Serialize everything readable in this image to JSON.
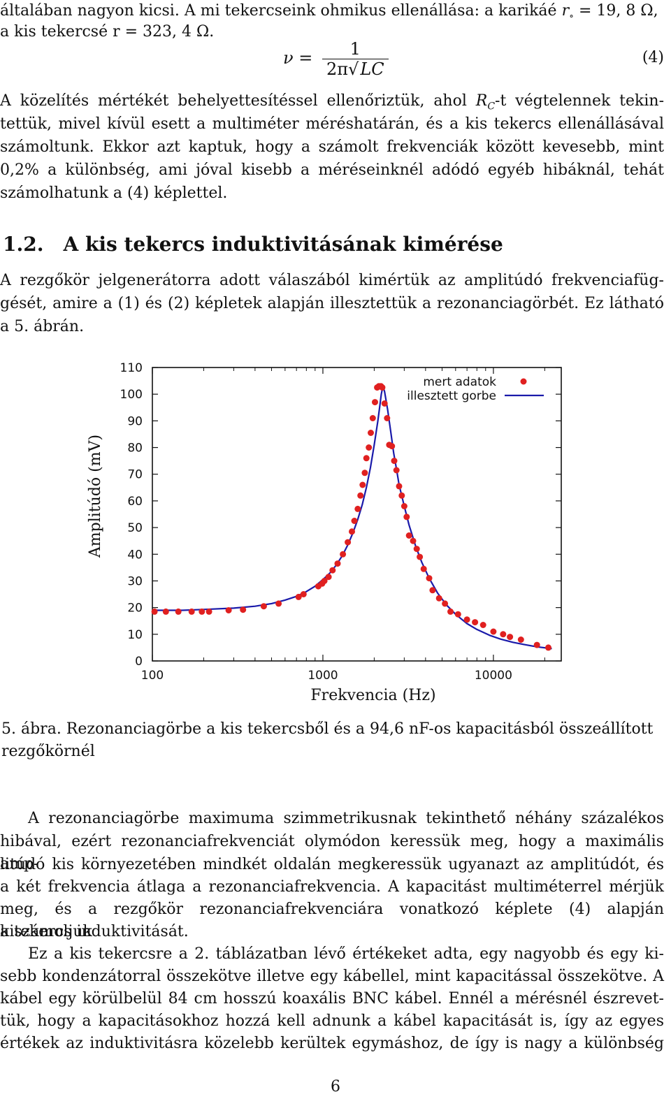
{
  "intro": {
    "line1_pre": "általában nagyon kicsi. A mi tekercseink ohmikus ellenállása: a karikáé ",
    "line1_sym": "r",
    "line1_sub": "∘",
    "line1_post": " = 19, 8 Ω,",
    "line2": "a kis tekercsé r = 323, 4 Ω."
  },
  "equation": {
    "lhs": "ν =",
    "numerator": "1",
    "den_pre": "2π",
    "den_root": "LC",
    "number": "(4)"
  },
  "paragraph1": {
    "line1_pre": "A közelítés mértékét behelyettesítéssel ellenőriztük, ahol ",
    "line1_sym": "R",
    "line1_sub": "C",
    "line1_post": "-t végtelennek tekin-",
    "line2": "tettük, mivel kívül esett a multiméter méréshatárán, és a kis tekercs ellenállásával",
    "line3": "számoltunk. Ekkor azt kaptuk, hogy a számolt frekvenciák között kevesebb, mint",
    "line4": "0,2% a különbség, ami jóval kisebb a méréseinknél adódó egyéb hibáknál, tehát",
    "line5": "számolhatunk a (4) képlettel."
  },
  "section": {
    "number": "1.2.",
    "title": "A kis tekercs induktivitásának kimérése"
  },
  "paragraph2": {
    "line1": "A rezgőkör jelgenerátorra adott válaszából kimértük az amplitúdó frekvenciafüg-",
    "line2": "gését, amire a (1) és (2) képletek alapján illesztettük a rezonanciagörbét. Ez látható",
    "line3": "a 5. ábrán."
  },
  "chart_data": {
    "type": "scatter",
    "xlabel": "Frekvencia (Hz)",
    "ylabel": "Amplitúdó (mV)",
    "x_scale": "log",
    "xlim": [
      100,
      25000
    ],
    "ylim": [
      0,
      110
    ],
    "x_ticks": [
      100,
      1000,
      10000
    ],
    "x_tick_labels": [
      "100",
      "1000",
      "10000"
    ],
    "y_ticks": [
      0,
      10,
      20,
      30,
      40,
      50,
      60,
      70,
      80,
      90,
      100,
      110
    ],
    "y_tick_labels": [
      "0",
      "10",
      "20",
      "30",
      "40",
      "50",
      "60",
      "70",
      "80",
      "90",
      "100",
      "110"
    ],
    "legend_position": "top-right",
    "series": [
      {
        "name": "mert adatok",
        "kind": "points",
        "color": "#e02020",
        "x": [
          103,
          120,
          142,
          170,
          195,
          215,
          280,
          340,
          450,
          550,
          720,
          770,
          940,
          990,
          1020,
          1080,
          1140,
          1220,
          1310,
          1400,
          1480,
          1530,
          1600,
          1660,
          1710,
          1760,
          1800,
          1860,
          1910,
          1960,
          2020,
          2080,
          2130,
          2190,
          2230,
          2300,
          2380,
          2450,
          2540,
          2620,
          2700,
          2800,
          2900,
          3000,
          3100,
          3200,
          3380,
          3550,
          3700,
          3900,
          4200,
          4400,
          4800,
          5200,
          5600,
          6200,
          7000,
          7800,
          8700,
          10000,
          11400,
          12500,
          14500,
          18000,
          21000
        ],
        "y": [
          18.5,
          18.5,
          18.5,
          18.5,
          18.5,
          18.5,
          19,
          19.2,
          20.5,
          21.5,
          24,
          25,
          28,
          29,
          30,
          31.5,
          34,
          36.5,
          40,
          44.5,
          48.5,
          52.5,
          57,
          62,
          66,
          70.5,
          76,
          80,
          85.5,
          91,
          97,
          102.5,
          103,
          103,
          102.5,
          96.5,
          91,
          81,
          80.5,
          75,
          71.5,
          65.5,
          62,
          58,
          54,
          47,
          45,
          42,
          39,
          34.5,
          31,
          26.5,
          23.5,
          21.5,
          18.5,
          17.5,
          15.5,
          14.5,
          13.5,
          11,
          10,
          9,
          8,
          6,
          5
        ]
      },
      {
        "name": "illesztett gorbe",
        "kind": "line",
        "color": "#1a1aaa",
        "x": [
          100,
          150,
          200,
          300,
          400,
          500,
          600,
          700,
          800,
          900,
          1000,
          1100,
          1200,
          1300,
          1400,
          1500,
          1600,
          1700,
          1800,
          1900,
          2000,
          2100,
          2150,
          2200,
          2250,
          2300,
          2400,
          2500,
          2600,
          2700,
          2800,
          3000,
          3200,
          3500,
          3800,
          4200,
          4700,
          5300,
          6000,
          7000,
          8000,
          9500,
          11000,
          13000,
          15000,
          18000,
          22000
        ],
        "y": [
          19,
          19,
          19.3,
          19.8,
          20.5,
          21.5,
          22.8,
          24.2,
          26,
          28,
          30.5,
          33,
          36,
          39.5,
          43.5,
          48,
          53,
          58.5,
          65,
          72.5,
          81,
          90,
          95,
          100,
          103,
          101,
          94,
          86,
          78,
          72,
          66,
          58,
          51,
          43,
          37,
          31,
          25.5,
          21,
          17.5,
          14,
          11.8,
          9.6,
          8.2,
          7,
          6.2,
          5.3,
          4.6
        ]
      }
    ]
  },
  "caption": {
    "label": "5. ábra.",
    "text": " Rezonanciagörbe a kis tekercsből és a 94,6 nF-os kapacitásból összeállított rezgőkörnél"
  },
  "paragraph3": {
    "p1_line1": "A rezonanciagörbe maximuma szimmetrikusnak tekinthető néhány százalékos",
    "p1_line2": "hibával, ezért rezonanciafrekvenciát olymódon keressük meg, hogy a maximális amp-",
    "p1_line3": "litúdó kis környezetében mindkét oldalán megkeressük ugyanazt az amplitúdót, és",
    "p1_line4": "a két frekvencia átlaga a rezonanciafrekvencia. A kapacitást multiméterrel mérjük",
    "p1_line5": "meg, és a rezgőkör rezonanciafrekvenciára vonatkozó képlete (4) alapján kiszámoljuk",
    "p1_line6": "a tekercs induktivitását.",
    "p2_line1": "Ez a kis tekercsre a 2. táblázatban lévő értékeket adta, egy nagyobb és egy ki-",
    "p2_line2": "sebb kondenzátorral összekötve illetve egy kábellel, mint kapacitással összekötve. A",
    "p2_line3": "kábel egy körülbelül 84 cm hosszú koaxális BNC kábel. Ennél a mérésnél észrevet-",
    "p2_line4": "tük, hogy a kapacitásokhoz hozzá kell adnunk a kábel kapacitását is, így az egyes",
    "p2_line5": "értékek az induktivitásra közelebb kerültek egymáshoz, de így is nagy a különbség"
  },
  "page_number": "6"
}
